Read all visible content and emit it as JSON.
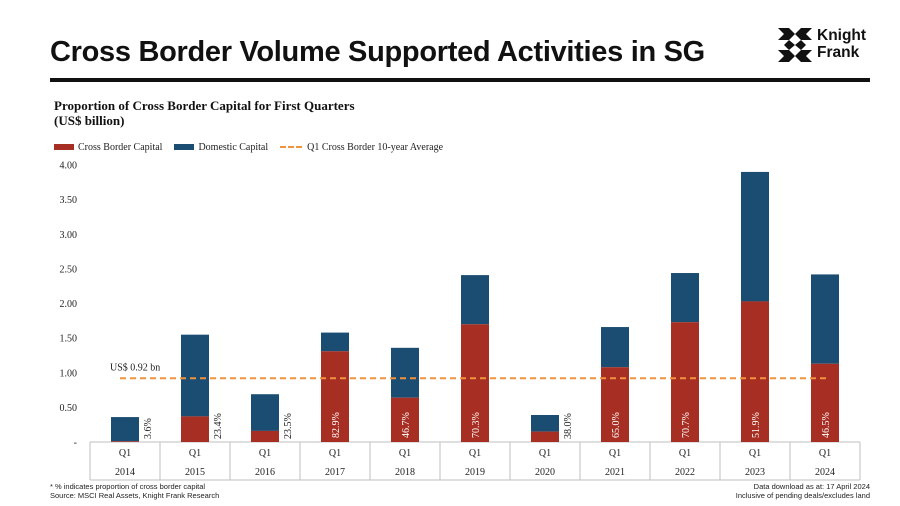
{
  "page": {
    "title": "Cross Border Volume Supported Activities in SG",
    "logo_line1": "Knight",
    "logo_line2": "Frank"
  },
  "colors": {
    "cross_border": "#a62e22",
    "domestic": "#1b4d72",
    "average_line": "#f0923e"
  },
  "chart_data": {
    "type": "bar",
    "stacked": true,
    "title_line1": "Proportion of Cross Border Capital for First Quarters",
    "title_line2": "(US$ billion)",
    "quarter_label": "Q1",
    "years": [
      "2014",
      "2015",
      "2016",
      "2017",
      "2018",
      "2019",
      "2020",
      "2021",
      "2022",
      "2023",
      "2024"
    ],
    "series": [
      {
        "name": "Cross Border Capital",
        "values": [
          0.01,
          0.37,
          0.16,
          1.31,
          0.64,
          1.7,
          0.15,
          1.08,
          1.73,
          2.03,
          1.13
        ]
      },
      {
        "name": "Domestic Capital",
        "values": [
          0.35,
          1.18,
          0.53,
          0.27,
          0.72,
          0.71,
          0.24,
          0.58,
          0.71,
          1.87,
          1.29
        ]
      }
    ],
    "proportion_labels": [
      "3.6%",
      "23.4%",
      "23.5%",
      "82.9%",
      "46.7%",
      "70.3%",
      "38.0%",
      "65.0%",
      "70.7%",
      "51.9%",
      "46.5%"
    ],
    "average_line": {
      "name": "Q1 Cross Border 10-year Average",
      "value": 0.92,
      "label": "US$ 0.92 bn"
    },
    "yticks": [
      0,
      0.5,
      1.0,
      1.5,
      2.0,
      2.5,
      3.0,
      3.5,
      4.0
    ],
    "ytick_labels": [
      "-",
      "0.50",
      "1.00",
      "1.50",
      "2.00",
      "2.50",
      "3.00",
      "3.50",
      "4.00"
    ],
    "ylim": [
      0,
      4.0
    ],
    "grid": false,
    "legend_position": "top-left"
  },
  "footnotes": {
    "left_line1": "* % indicates proportion of cross border capital",
    "left_line2": "Source: MSCI Real Assets, Knight Frank Research",
    "right_line1": "Data download as at: 17 April 2024",
    "right_line2": "Inclusive of pending deals/excludes land"
  }
}
